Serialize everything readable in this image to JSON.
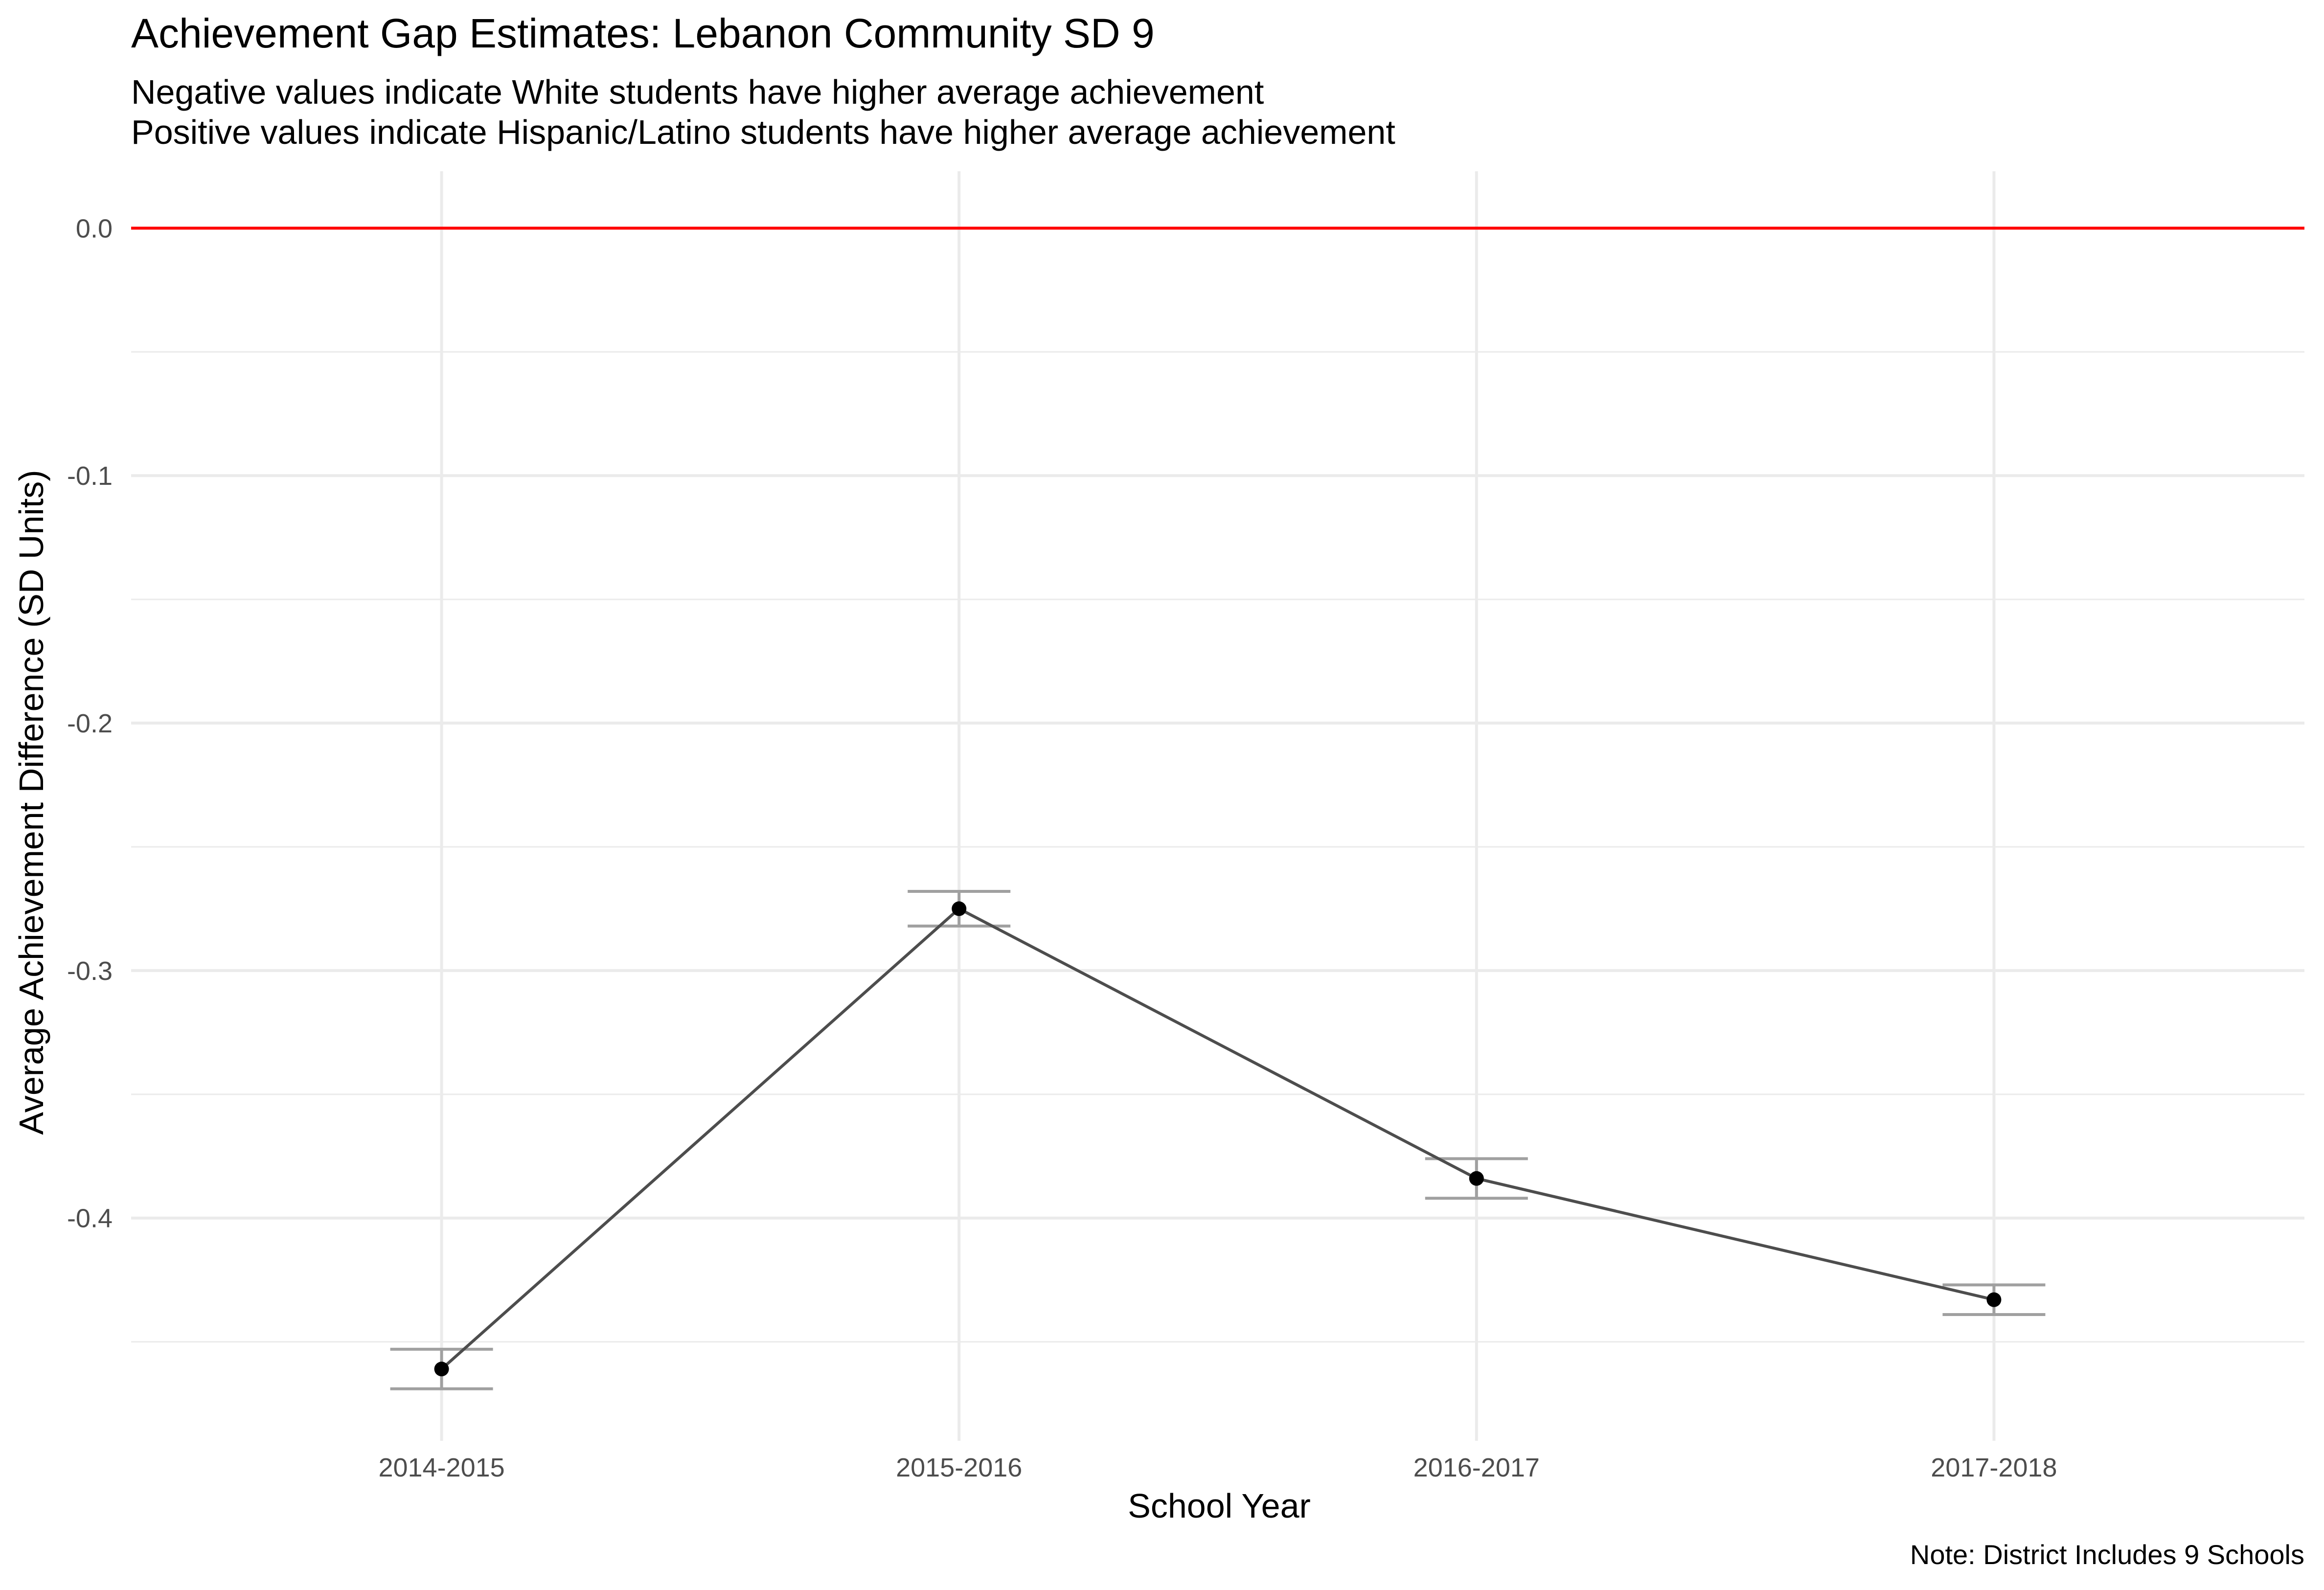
{
  "chart_data": {
    "type": "line",
    "title": "Achievement Gap Estimates: Lebanon Community SD 9",
    "subtitle": [
      "Negative values indicate White students have higher average achievement",
      "Positive values indicate Hispanic/Latino students have higher average achievement"
    ],
    "caption": "Note: District Includes 9 Schools",
    "xlabel": "School Year",
    "ylabel": "Average Achievement Difference (SD Units)",
    "categories": [
      "2014-2015",
      "2015-2016",
      "2016-2017",
      "2017-2018"
    ],
    "series": [
      {
        "values": [
          -0.461,
          -0.275,
          -0.384,
          -0.433
        ],
        "error_low": [
          -0.469,
          -0.282,
          -0.392,
          -0.439
        ],
        "error_high": [
          -0.453,
          -0.268,
          -0.376,
          -0.427
        ],
        "color": "#4d4d4d",
        "point_color": "#000000",
        "error_color": "#a0a0a0"
      }
    ],
    "reference_line": {
      "y": 0.0,
      "color": "#ff0000"
    },
    "yticks": [
      0.0,
      -0.1,
      -0.2,
      -0.3,
      -0.4
    ],
    "ytick_labels": [
      "0.0",
      "-0.1",
      "-0.2",
      "-0.3",
      "-0.4"
    ],
    "ylim": [
      -0.49,
      0.023
    ],
    "grid": true,
    "grid_color": "#ebebeb",
    "legend": "none"
  }
}
